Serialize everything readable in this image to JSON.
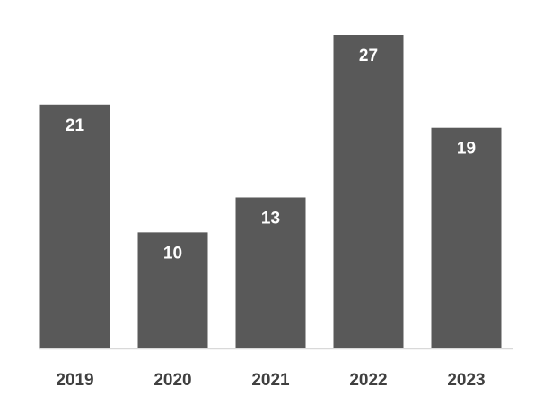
{
  "chart_data": {
    "type": "bar",
    "categories": [
      "2019",
      "2020",
      "2021",
      "2022",
      "2023"
    ],
    "values": [
      21,
      10,
      13,
      27,
      19
    ],
    "color": "#595959"
  }
}
